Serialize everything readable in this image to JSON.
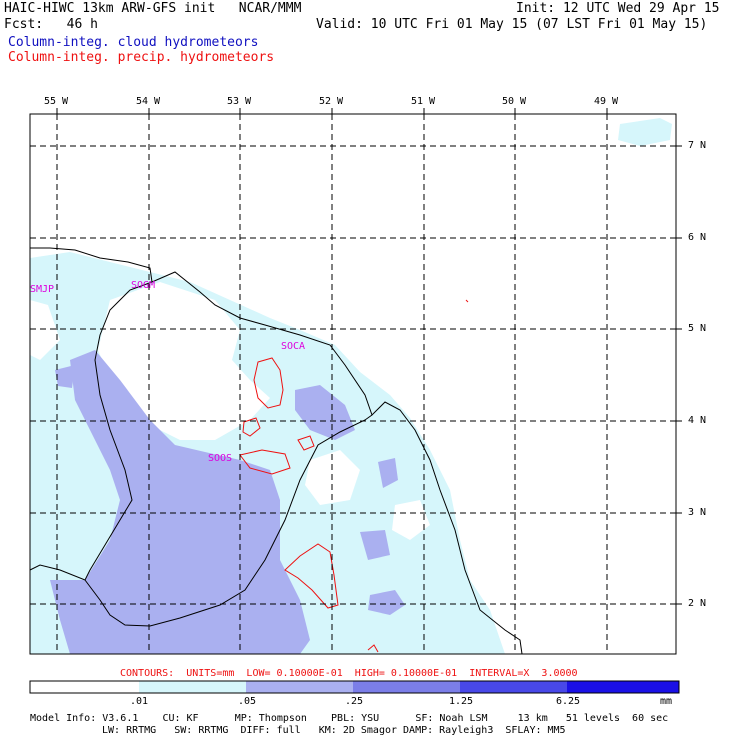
{
  "header": {
    "title_left": "HAIC-HIWC 13km ARW-GFS init   NCAR/MMM",
    "fcst": "Fcst:   46 h",
    "init": "Init: 12 UTC Wed 29 Apr 15",
    "valid": "Valid: 10 UTC Fri 01 May 15 (07 LST Fri 01 May 15)",
    "field1": "Column-integ. cloud hydrometeors",
    "field2": "Column-integ. precip. hydrometeors",
    "field1_color": "#1010c0",
    "field2_color": "#ee1111"
  },
  "map": {
    "lon_labels": [
      "55 W",
      "54 W",
      "53 W",
      "52 W",
      "51 W",
      "50 W",
      "49 W"
    ],
    "lat_labels": [
      "7 N",
      "6 N",
      "5 N",
      "4 N",
      "3 N",
      "2 N"
    ],
    "stations": [
      "SMJP",
      "SOGM",
      "SOCA",
      "SOOS"
    ]
  },
  "contours_line": "CONTOURS:  UNITS=mm  LOW= 0.10000E-01  HIGH= 0.10000E-01  INTERVAL=X  3.0000",
  "colorbar": {
    "labels": [
      ".01",
      ".05",
      ".25",
      "1.25",
      "6.25"
    ],
    "units": "mm",
    "colors": [
      "#ffffff",
      "#d6f6fb",
      "#aab0f0",
      "#7b7ee8",
      "#4848e8",
      "#1a10e6"
    ]
  },
  "footer": {
    "line1": "Model Info: V3.6.1    CU: KF      MP: Thompson    PBL: YSU      SF: Noah LSM     13 km   51 levels  60 sec",
    "line2": "LW: RRTMG   SW: RRTMG  DIFF: full   KM: 2D Smagor DAMP: Rayleigh3  SFLAY: MM5"
  }
}
